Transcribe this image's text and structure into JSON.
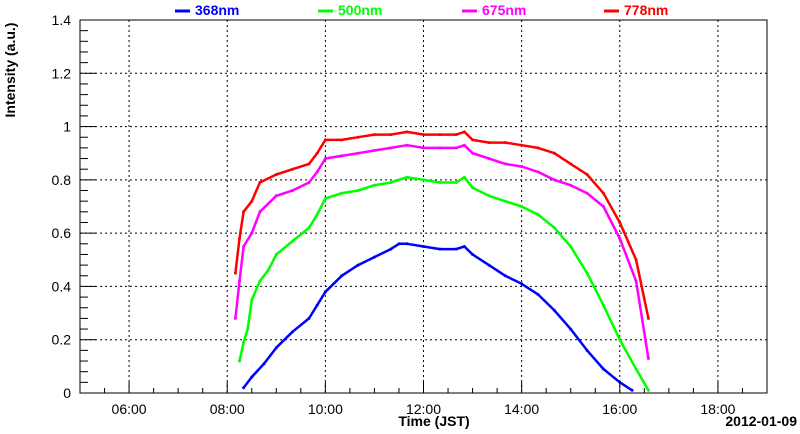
{
  "chart_data": {
    "type": "line",
    "xlabel": "Time (JST)",
    "ylabel": "Intensity (a.u.)",
    "date_label": "2012-01-09",
    "x_ticks": [
      "06:00",
      "08:00",
      "10:00",
      "12:00",
      "14:00",
      "16:00",
      "18:00"
    ],
    "xlim": [
      "05:00",
      "19:00"
    ],
    "ylim": [
      0,
      1.4
    ],
    "y_ticks": [
      "0",
      "0.2",
      "0.4",
      "0.6",
      "0.8",
      "1",
      "1.2",
      "1.4"
    ],
    "grid": true,
    "legend_position": "top",
    "series": [
      {
        "name": "368nm",
        "color": "#0000ff",
        "x": [
          "08:20",
          "08:30",
          "08:45",
          "09:00",
          "09:20",
          "09:40",
          "09:50",
          "10:00",
          "10:20",
          "10:40",
          "11:00",
          "11:20",
          "11:30",
          "11:40",
          "12:00",
          "12:20",
          "12:40",
          "12:50",
          "13:00",
          "13:20",
          "13:40",
          "14:00",
          "14:20",
          "14:40",
          "15:00",
          "15:20",
          "15:40",
          "16:00",
          "16:15"
        ],
        "values": [
          0.02,
          0.06,
          0.11,
          0.17,
          0.23,
          0.28,
          0.33,
          0.38,
          0.44,
          0.48,
          0.51,
          0.54,
          0.56,
          0.56,
          0.55,
          0.54,
          0.54,
          0.55,
          0.52,
          0.48,
          0.44,
          0.41,
          0.37,
          0.31,
          0.24,
          0.16,
          0.09,
          0.04,
          0.01
        ]
      },
      {
        "name": "500nm",
        "color": "#00ff00",
        "x": [
          "08:15",
          "08:20",
          "08:25",
          "08:30",
          "08:40",
          "08:50",
          "09:00",
          "09:20",
          "09:40",
          "09:50",
          "10:00",
          "10:20",
          "10:40",
          "11:00",
          "11:20",
          "11:40",
          "12:00",
          "12:20",
          "12:40",
          "12:50",
          "13:00",
          "13:20",
          "13:40",
          "14:00",
          "14:20",
          "14:40",
          "15:00",
          "15:20",
          "15:40",
          "16:00",
          "16:20",
          "16:35"
        ],
        "values": [
          0.12,
          0.19,
          0.24,
          0.35,
          0.42,
          0.46,
          0.52,
          0.57,
          0.62,
          0.67,
          0.73,
          0.75,
          0.76,
          0.78,
          0.79,
          0.81,
          0.8,
          0.79,
          0.79,
          0.81,
          0.77,
          0.74,
          0.72,
          0.7,
          0.67,
          0.62,
          0.55,
          0.45,
          0.33,
          0.2,
          0.09,
          0.01
        ]
      },
      {
        "name": "675nm",
        "color": "#ff00ff",
        "x": [
          "08:10",
          "08:15",
          "08:20",
          "08:30",
          "08:40",
          "09:00",
          "09:20",
          "09:40",
          "09:50",
          "10:00",
          "10:20",
          "10:40",
          "11:00",
          "11:20",
          "11:40",
          "12:00",
          "12:20",
          "12:40",
          "12:50",
          "13:00",
          "13:20",
          "13:40",
          "14:00",
          "14:20",
          "14:40",
          "15:00",
          "15:20",
          "15:40",
          "16:00",
          "16:20",
          "16:35"
        ],
        "values": [
          0.28,
          0.42,
          0.55,
          0.6,
          0.68,
          0.74,
          0.76,
          0.79,
          0.83,
          0.88,
          0.89,
          0.9,
          0.91,
          0.92,
          0.93,
          0.92,
          0.92,
          0.92,
          0.93,
          0.9,
          0.88,
          0.86,
          0.85,
          0.83,
          0.8,
          0.78,
          0.75,
          0.7,
          0.58,
          0.42,
          0.13
        ]
      },
      {
        "name": "778nm",
        "color": "#ff0000",
        "x": [
          "08:10",
          "08:15",
          "08:20",
          "08:30",
          "08:40",
          "09:00",
          "09:20",
          "09:40",
          "09:50",
          "10:00",
          "10:20",
          "10:40",
          "11:00",
          "11:20",
          "11:40",
          "12:00",
          "12:20",
          "12:40",
          "12:50",
          "13:00",
          "13:20",
          "13:40",
          "14:00",
          "14:20",
          "14:40",
          "15:00",
          "15:20",
          "15:40",
          "16:00",
          "16:20",
          "16:35"
        ],
        "values": [
          0.45,
          0.58,
          0.68,
          0.72,
          0.79,
          0.82,
          0.84,
          0.86,
          0.9,
          0.95,
          0.95,
          0.96,
          0.97,
          0.97,
          0.98,
          0.97,
          0.97,
          0.97,
          0.98,
          0.95,
          0.94,
          0.94,
          0.93,
          0.92,
          0.9,
          0.86,
          0.82,
          0.75,
          0.64,
          0.5,
          0.28
        ]
      }
    ]
  }
}
